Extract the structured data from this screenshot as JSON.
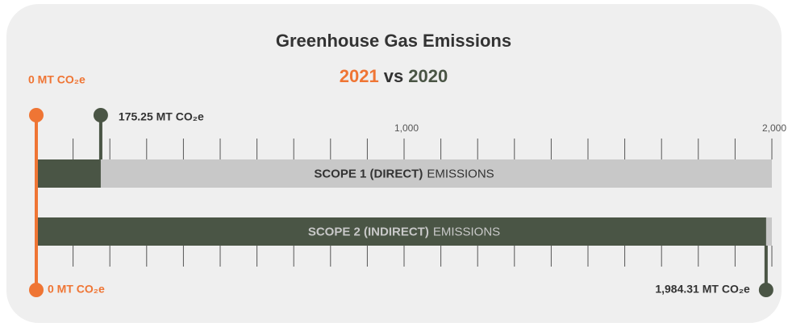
{
  "chart_data": {
    "type": "pin-bar",
    "title": "Greenhouse Gas Emissions",
    "subtitle_joiner": "vs",
    "categories": [
      {
        "bold": "SCOPE 1 (DIRECT)",
        "rest": "EMISSIONS"
      },
      {
        "bold": "SCOPE 2 (INDIRECT)",
        "rest": "EMISSIONS"
      }
    ],
    "series": [
      {
        "name": "2021",
        "color": "#ef7534",
        "values": [
          0,
          0
        ],
        "value_labels": [
          "0 MT CO₂e",
          "0 MT CO₂e"
        ]
      },
      {
        "name": "2020",
        "color": "#4a5545",
        "values": [
          175.25,
          1984.31
        ],
        "value_labels": [
          "175.25 MT CO₂e",
          "1,984.31 MT CO₂e"
        ]
      }
    ],
    "track_color": "#c8c8c8",
    "xlim": [
      0,
      2000
    ],
    "xticks": [
      {
        "value": 1000,
        "label": "1,000"
      },
      {
        "value": 2000,
        "label": "2,000"
      }
    ],
    "xminor": [
      0,
      100,
      200,
      300,
      400,
      500,
      600,
      700,
      800,
      900,
      1000,
      1100,
      1200,
      1300,
      1400,
      1500,
      1600,
      1700,
      1800,
      1900,
      2000
    ]
  }
}
